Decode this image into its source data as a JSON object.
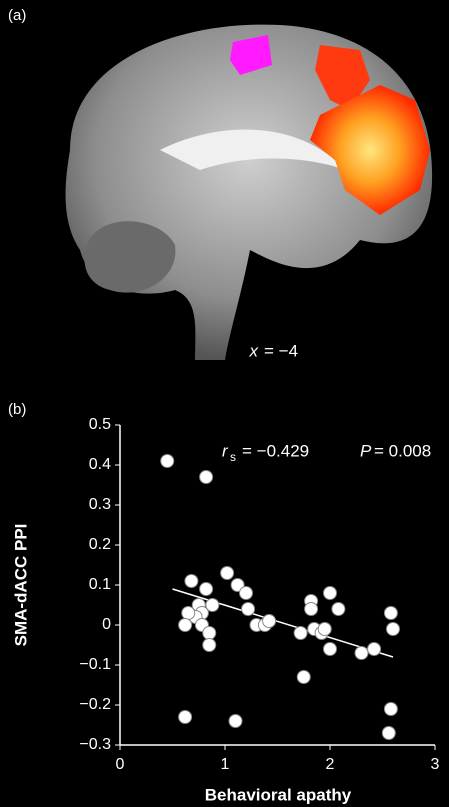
{
  "panel_a": {
    "label": "(a)",
    "annotation_var": "x",
    "annotation_value": "= −4"
  },
  "chart_data": {
    "type": "scatter",
    "panel_label": "(b)",
    "x_label": "Behavioral apathy",
    "y_label": "SMA-dACC PPI",
    "stat_label": "r",
    "stat_subscript": "s",
    "stat_value": "= −0.429",
    "p_label": "P",
    "p_value": "= 0.008",
    "color": "#ffffff",
    "x": [
      0.45,
      0.82,
      0.68,
      0.82,
      0.75,
      0.78,
      0.72,
      0.65,
      0.62,
      0.78,
      0.88,
      0.85,
      0.85,
      1.02,
      1.12,
      1.2,
      1.22,
      1.3,
      1.38,
      1.42,
      1.72,
      1.75,
      1.82,
      1.82,
      1.85,
      1.92,
      1.95,
      2.0,
      2.0,
      2.08,
      2.3,
      2.42,
      2.58,
      2.6,
      2.58,
      2.56,
      0.62,
      1.1
    ],
    "values": [
      0.41,
      0.37,
      0.11,
      0.09,
      0.05,
      0.03,
      0.02,
      0.03,
      0.0,
      0.0,
      0.05,
      -0.02,
      -0.05,
      0.13,
      0.1,
      0.08,
      0.04,
      0.0,
      0.0,
      0.01,
      -0.02,
      -0.13,
      0.06,
      0.04,
      -0.01,
      -0.02,
      -0.01,
      0.08,
      -0.06,
      0.04,
      -0.07,
      -0.06,
      0.03,
      -0.01,
      -0.21,
      -0.27,
      -0.23,
      -0.24
    ],
    "trendline": {
      "x": [
        0.5,
        2.6
      ],
      "values": [
        0.09,
        -0.08
      ]
    },
    "xlim": [
      0,
      3
    ],
    "xticks": [
      0,
      1,
      2,
      3
    ],
    "ylim": [
      -0.3,
      0.5
    ],
    "yticks": [
      {
        "value": -0.3,
        "label": "−0.3"
      },
      {
        "value": -0.2,
        "label": "−0.2"
      },
      {
        "value": -0.1,
        "label": "−0.1"
      },
      0,
      0.1,
      0.2,
      0.3,
      0.4,
      0.5
    ]
  }
}
